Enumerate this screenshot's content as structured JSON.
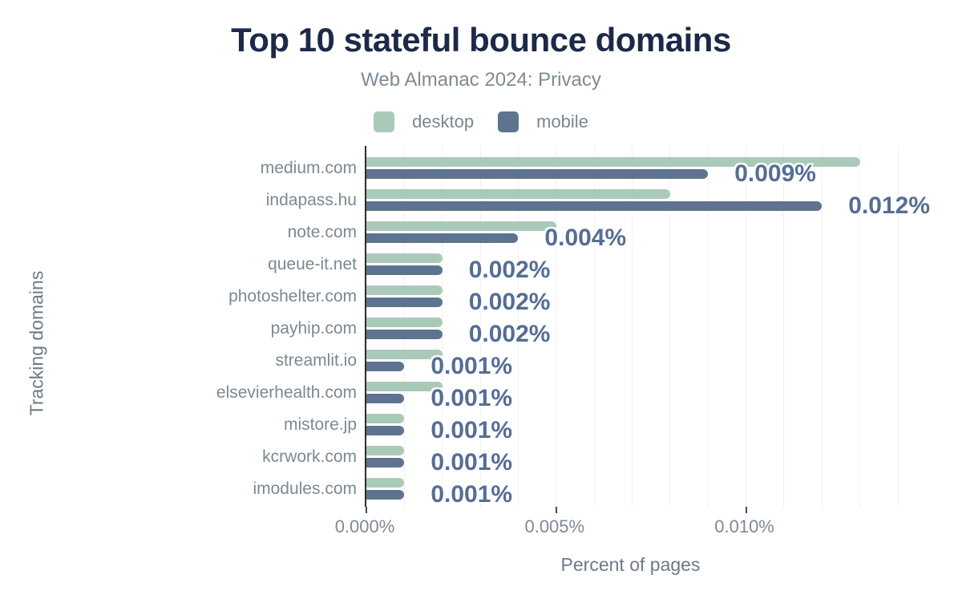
{
  "header": {
    "title": "Top 10 stateful bounce domains",
    "subtitle": "Web Almanac 2024: Privacy"
  },
  "legend": {
    "items": [
      {
        "label": "desktop",
        "color": "#a9cab8"
      },
      {
        "label": "mobile",
        "color": "#5e7390"
      }
    ]
  },
  "chart_data": {
    "type": "bar",
    "orientation": "horizontal",
    "title": "Top 10 stateful bounce domains",
    "subtitle": "Web Almanac 2024: Privacy",
    "xlabel": "Percent of pages",
    "ylabel": "Tracking domains",
    "categories": [
      "medium.com",
      "indapass.hu",
      "note.com",
      "queue-it.net",
      "photoshelter.com",
      "payhip.com",
      "streamlit.io",
      "elsevierhealth.com",
      "mistore.jp",
      "kcrwork.com",
      "imodules.com"
    ],
    "series": [
      {
        "name": "desktop",
        "color": "#a9cab8",
        "values": [
          0.013,
          0.008,
          0.005,
          0.002,
          0.002,
          0.002,
          0.002,
          0.002,
          0.001,
          0.001,
          0.001
        ]
      },
      {
        "name": "mobile",
        "color": "#5e7390",
        "values": [
          0.009,
          0.012,
          0.004,
          0.002,
          0.002,
          0.002,
          0.001,
          0.001,
          0.001,
          0.001,
          0.001
        ]
      }
    ],
    "value_labels": [
      "0.009%",
      "0.012%",
      "0.004%",
      "0.002%",
      "0.002%",
      "0.002%",
      "0.001%",
      "0.001%",
      "0.001%",
      "0.001%",
      "0.001%"
    ],
    "value_labels_source": "mobile",
    "x_ticks": [
      {
        "value": 0.0,
        "label": "0.000%"
      },
      {
        "value": 0.005,
        "label": "0.005%"
      },
      {
        "value": 0.01,
        "label": "0.010%"
      }
    ],
    "xlim": [
      0,
      0.014
    ],
    "gridline_step": 0.001,
    "grid": "vertical",
    "legend_position": "top",
    "units": "percent of pages"
  },
  "colors": {
    "title": "#1c2948",
    "muted_text": "#7f8a94",
    "axis_title": "#6e7987",
    "value_label": "#556e95",
    "axis_line": "#2d2d2d",
    "gridline": "#f0f1f3",
    "background": "#ffffff"
  }
}
